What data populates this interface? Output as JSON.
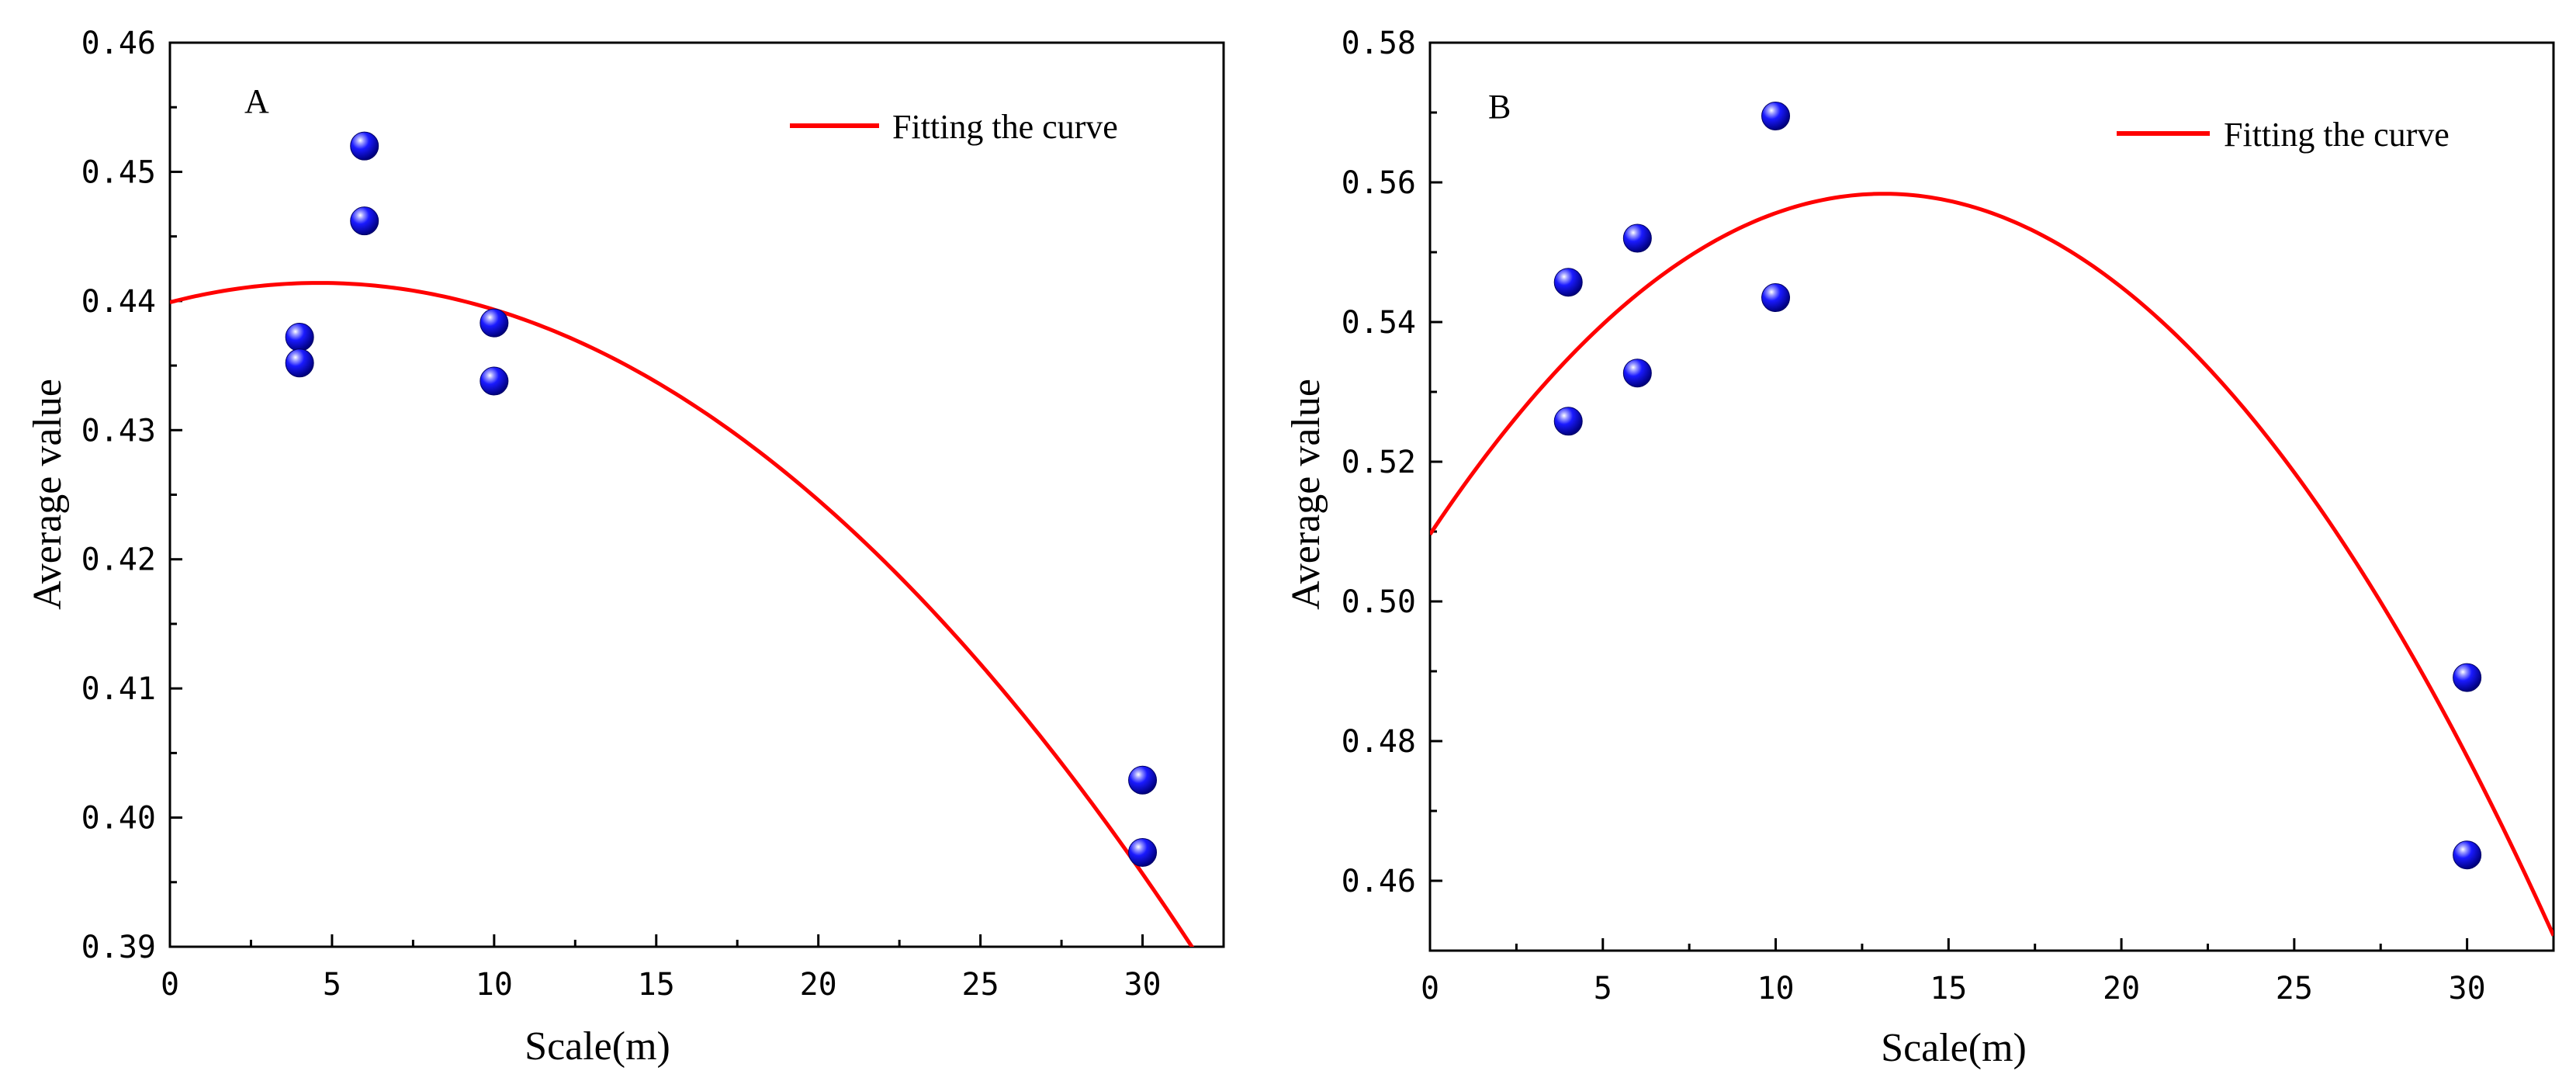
{
  "chart_data": [
    {
      "type": "scatter",
      "panel_label": "A",
      "xlabel": "Scale(m)",
      "ylabel": "Average value",
      "xlim": [
        0,
        32.5
      ],
      "ylim": [
        0.39,
        0.46
      ],
      "xticks": [
        0,
        5,
        10,
        15,
        20,
        25,
        30
      ],
      "yticks": [
        0.39,
        0.4,
        0.41,
        0.42,
        0.43,
        0.44,
        0.45,
        0.46
      ],
      "xtick_labels": [
        "0",
        "5",
        "10",
        "15",
        "20",
        "25",
        "30"
      ],
      "ytick_labels": [
        "0.39",
        "0.40",
        "0.41",
        "0.42",
        "0.43",
        "0.44",
        "0.45",
        "0.46"
      ],
      "legend_position": "top-right",
      "grid": false,
      "series": [
        {
          "kind": "points",
          "color": "#1a1aff",
          "x": [
            4,
            4,
            6,
            6,
            10,
            10,
            30,
            30
          ],
          "y": [
            0.4372,
            0.4352,
            0.452,
            0.4462,
            0.4383,
            0.4338,
            0.4029,
            0.3973
          ]
        },
        {
          "kind": "curve",
          "name": "Fitting the curve",
          "color": "#ff0000",
          "quadratic": {
            "a": -7.09e-05,
            "b": 0.000652,
            "c": 0.4399
          },
          "x_range": [
            0,
            32.5
          ]
        }
      ]
    },
    {
      "type": "scatter",
      "panel_label": "B",
      "xlabel": "Scale(m)",
      "ylabel": "Average value",
      "xlim": [
        0,
        32.5
      ],
      "ylim": [
        0.45,
        0.58
      ],
      "xticks": [
        0,
        5,
        10,
        15,
        20,
        25,
        30
      ],
      "yticks": [
        0.46,
        0.48,
        0.5,
        0.52,
        0.54,
        0.56,
        0.58
      ],
      "xtick_labels": [
        "0",
        "5",
        "10",
        "15",
        "20",
        "25",
        "30"
      ],
      "ytick_labels": [
        "0.46",
        "0.48",
        "0.50",
        "0.52",
        "0.54",
        "0.56",
        "0.58"
      ],
      "legend_position": "top-right",
      "grid": false,
      "series": [
        {
          "kind": "points",
          "color": "#1a1aff",
          "x": [
            4,
            4,
            6,
            6,
            10,
            10,
            30,
            30
          ],
          "y": [
            0.5457,
            0.5258,
            0.552,
            0.5327,
            0.5695,
            0.5435,
            0.4891,
            0.4637
          ]
        },
        {
          "kind": "curve",
          "name": "Fitting the curve",
          "color": "#ff0000",
          "quadratic": {
            "a": -0.000283,
            "b": 0.00743,
            "c": 0.5096
          },
          "x_range": [
            0,
            32.5
          ]
        }
      ]
    }
  ]
}
